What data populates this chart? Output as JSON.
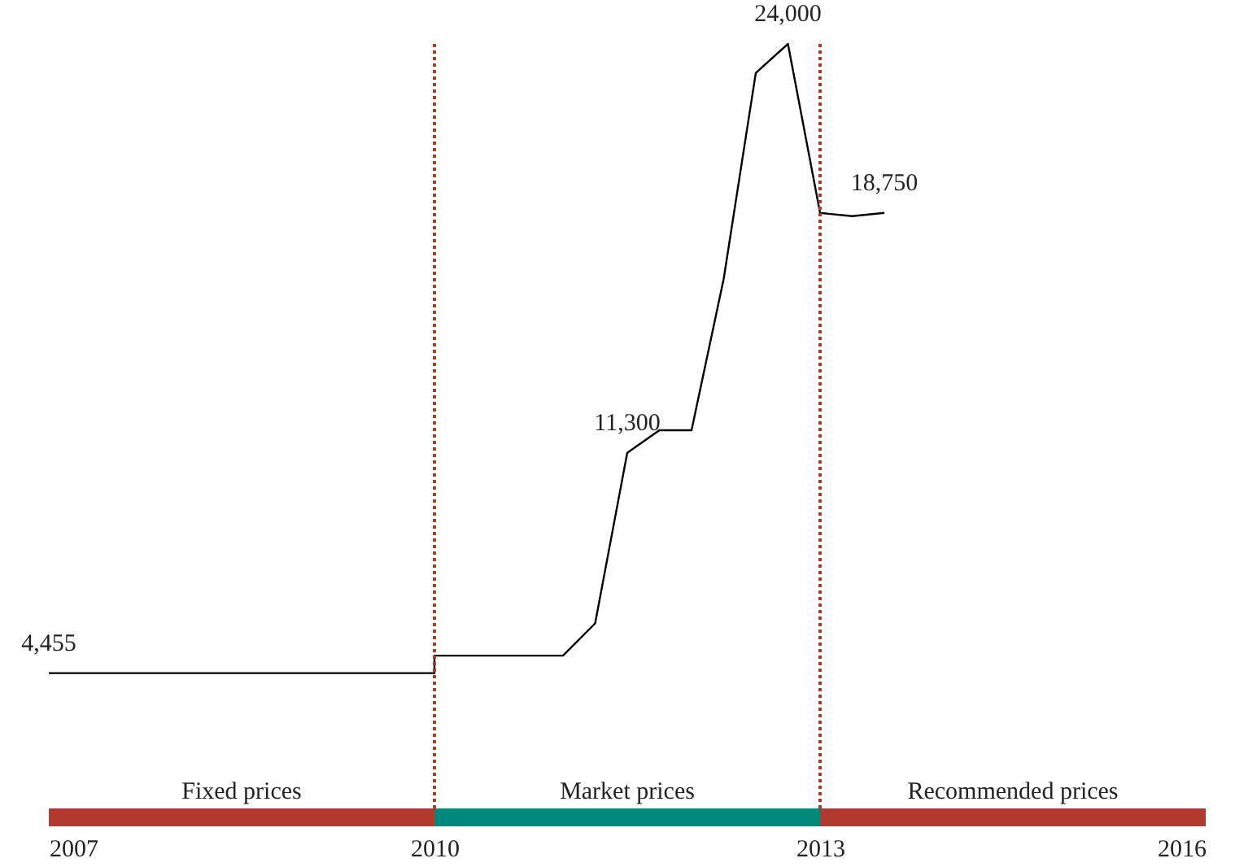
{
  "chart_data": {
    "type": "line",
    "x": [
      2007,
      2010,
      2010,
      2011,
      2011.25,
      2011.5,
      2011.75,
      2012,
      2012.25,
      2012.5,
      2012.75,
      2013,
      2013.25,
      2013.5
    ],
    "series": [
      {
        "color": "#000000",
        "values": [
          4455,
          4455,
          5000,
          5000,
          6000,
          11300,
          12000,
          12000,
          16700,
          23100,
          24000,
          18750,
          18650,
          18750
        ],
        "value_labels": [
          "4,455",
          null,
          null,
          null,
          null,
          "11,300",
          null,
          null,
          null,
          null,
          "24,000",
          null,
          null,
          "18,750"
        ]
      }
    ],
    "xlim": [
      2007,
      2016
    ],
    "xticks": [
      2007,
      2010,
      2013,
      2016
    ],
    "tick_labels": "x",
    "ref_lines": [
      {
        "axis": "x",
        "value": 2010,
        "color": "#b03a2e",
        "line_style": "dotted"
      },
      {
        "axis": "x",
        "value": 2013,
        "color": "#b03a2e",
        "line_style": "dotted"
      }
    ],
    "annotations": [
      "Fixed prices",
      "Market prices",
      "Recommended prices"
    ],
    "grid": false,
    "marker": "none",
    "line_style": "solid"
  }
}
